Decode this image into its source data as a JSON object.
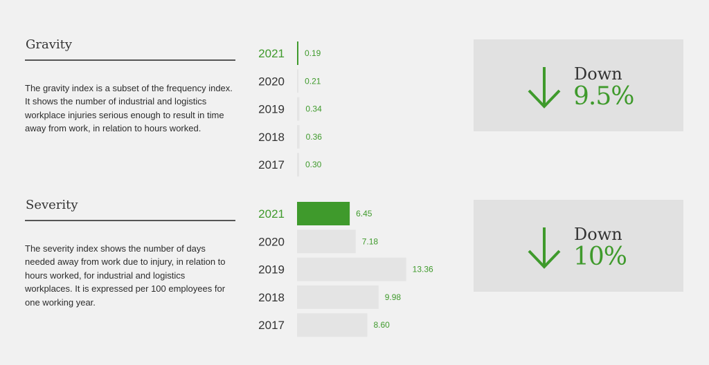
{
  "colors": {
    "accent": "#3f9a2c",
    "bar_grey": "#e4e4e4",
    "panel": "#e1e1e1"
  },
  "gravity": {
    "title": "Gravity",
    "description": "The gravity index is a subset of the frequency index. It shows the number of industrial and logistics workplace injuries serious enough to result in time away from work, in relation to hours worked.",
    "trend_label": "Down",
    "trend_value": "9.5%",
    "icon": "arrow-down-icon"
  },
  "severity": {
    "title": "Severity",
    "description": "The severity index shows the number of days needed away from work due to injury, in relation to hours worked, for industrial and logistics workplaces. It is expressed per 100 employees for one working year.",
    "trend_label": "Down",
    "trend_value": "10%",
    "icon": "arrow-down-icon"
  },
  "chart_data": [
    {
      "type": "bar",
      "orientation": "horizontal",
      "categories": [
        "2021",
        "2020",
        "2019",
        "2018",
        "2017"
      ],
      "values": [
        0.19,
        0.21,
        0.34,
        0.36,
        0.3
      ],
      "value_labels": [
        "0.19",
        "0.21",
        "0.34",
        "0.36",
        "0.30"
      ],
      "highlight": "2021",
      "title": "Gravity",
      "grid": false
    },
    {
      "type": "bar",
      "orientation": "horizontal",
      "categories": [
        "2021",
        "2020",
        "2019",
        "2018",
        "2017"
      ],
      "values": [
        6.45,
        7.18,
        13.36,
        9.98,
        8.6
      ],
      "value_labels": [
        "6.45",
        "7.18",
        "13.36",
        "9.98",
        "8.60"
      ],
      "highlight": "2021",
      "title": "Severity",
      "grid": false
    }
  ]
}
